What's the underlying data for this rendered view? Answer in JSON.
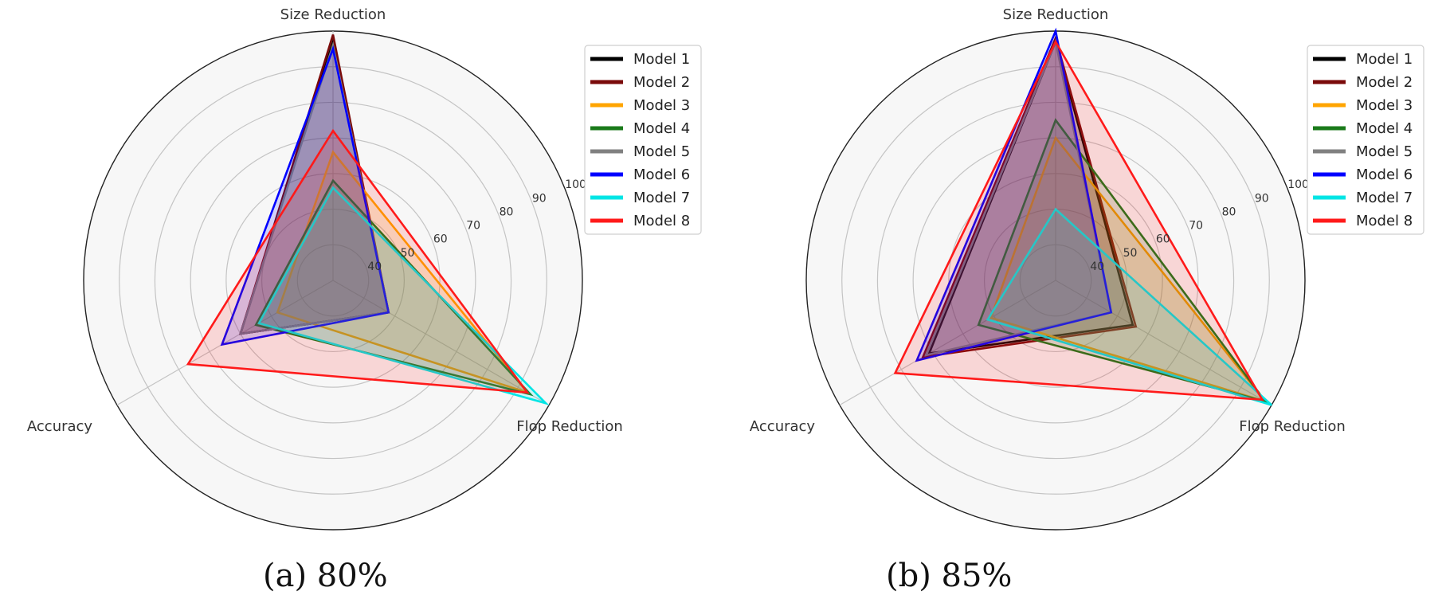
{
  "figure": {
    "models": [
      "Model 1",
      "Model 2",
      "Model 3",
      "Model 4",
      "Model 5",
      "Model 6",
      "Model 7",
      "Model 8"
    ],
    "colors": {
      "Model 1": "#000000",
      "Model 2": "#7a0a0a",
      "Model 3": "#ffa500",
      "Model 4": "#1a7a1a",
      "Model 5": "#808080",
      "Model 6": "#0000ff",
      "Model 7": "#00e5e5",
      "Model 8": "#ff1a1a"
    },
    "axes": [
      "Size Reduction",
      "Flop Reduction",
      "Accuracy"
    ],
    "tick_labels": [
      "40",
      "50",
      "60",
      "70",
      "80",
      "90",
      "100"
    ]
  },
  "chart_data": [
    {
      "type": "radar",
      "caption": "(a) 80%",
      "axes": [
        "Size Reduction",
        "Flop Reduction",
        "Accuracy"
      ],
      "rlim": [
        30,
        100
      ],
      "rticks": [
        40,
        50,
        60,
        70,
        80,
        90,
        100
      ],
      "legend": "top-right",
      "series": [
        {
          "name": "Model 1",
          "values": [
            97,
            48,
            60
          ]
        },
        {
          "name": "Model 2",
          "values": [
            99,
            48,
            60
          ]
        },
        {
          "name": "Model 3",
          "values": [
            66,
            93,
            48
          ]
        },
        {
          "name": "Model 4",
          "values": [
            58,
            94,
            55
          ]
        },
        {
          "name": "Model 5",
          "values": [
            96,
            48,
            60
          ]
        },
        {
          "name": "Model 6",
          "values": [
            95,
            48,
            66
          ]
        },
        {
          "name": "Model 7",
          "values": [
            56,
            99,
            54
          ]
        },
        {
          "name": "Model 8",
          "values": [
            72,
            93,
            77
          ]
        }
      ]
    },
    {
      "type": "radar",
      "caption": "(b) 85%",
      "axes": [
        "Size Reduction",
        "Flop Reduction",
        "Accuracy"
      ],
      "rlim": [
        30,
        100
      ],
      "rticks": [
        40,
        50,
        60,
        70,
        80,
        90,
        100
      ],
      "legend": "top-right",
      "series": [
        {
          "name": "Model 1",
          "values": [
            97,
            55,
            71
          ]
        },
        {
          "name": "Model 2",
          "values": [
            98,
            56,
            73
          ]
        },
        {
          "name": "Model 3",
          "values": [
            70,
            98,
            51
          ]
        },
        {
          "name": "Model 4",
          "values": [
            75,
            98,
            55
          ]
        },
        {
          "name": "Model 5",
          "values": [
            97,
            48,
            72
          ]
        },
        {
          "name": "Model 6",
          "values": [
            100,
            48,
            75
          ]
        },
        {
          "name": "Model 7",
          "values": [
            50,
            100,
            52
          ]
        },
        {
          "name": "Model 8",
          "values": [
            97,
            97,
            82
          ]
        }
      ]
    }
  ]
}
